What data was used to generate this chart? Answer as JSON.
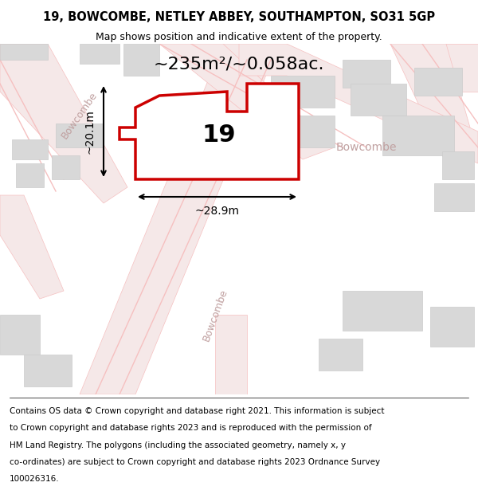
{
  "title_line1": "19, BOWCOMBE, NETLEY ABBEY, SOUTHAMPTON, SO31 5GP",
  "title_line2": "Map shows position and indicative extent of the property.",
  "area_text": "~235m²/~0.058ac.",
  "width_label": "~28.9m",
  "height_label": "~20.1m",
  "number_label": "19",
  "footer_text": "Contains OS data © Crown copyright and database right 2021. This information is subject to Crown copyright and database rights 2023 and is reproduced with the permission of HM Land Registry. The polygons (including the associated geometry, namely x, y co-ordinates) are subject to Crown copyright and database rights 2023 Ordnance Survey 100026316.",
  "bg_color": "#f5f0f0",
  "map_bg": "#ffffff",
  "road_color": "#f5c0c0",
  "road_fill": "#f5e8e8",
  "building_fill": "#d8d8d8",
  "building_edge": "#cccccc",
  "plot_fill": "#ffffff",
  "plot_edge": "#cc0000",
  "street_label_color": "#c0a0a0",
  "dim_color": "#000000",
  "title_fontsize": 10.5,
  "subtitle_fontsize": 9,
  "area_fontsize": 16,
  "label_fontsize": 22,
  "dim_fontsize": 10,
  "footer_fontsize": 7.5
}
